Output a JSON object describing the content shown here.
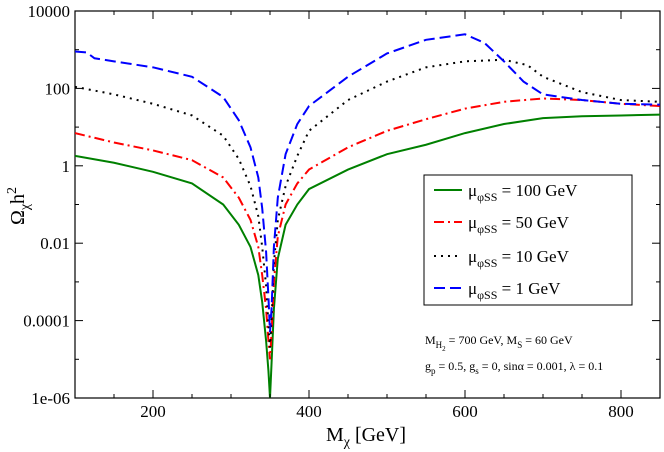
{
  "chart_data": {
    "type": "line",
    "title": "",
    "xlabel": "M",
    "xlabel_sub": "χ",
    "xlabel_unit": "[GeV]",
    "ylabel": "Ω",
    "ylabel_sub": "χ",
    "ylabel_tail": "h",
    "ylabel_sup": "2",
    "xscale": "linear",
    "yscale": "log",
    "xlim": [
      100,
      850
    ],
    "ylim": [
      1e-06,
      10000
    ],
    "xticks": [
      200,
      400,
      600,
      800
    ],
    "xtick_labels": [
      "200",
      "400",
      "600",
      "800"
    ],
    "yticks": [
      1e-06,
      0.0001,
      0.01,
      1,
      100,
      10000
    ],
    "ytick_labels": [
      "1e-06",
      "0.0001",
      "0.01",
      "1",
      "100",
      "10000"
    ],
    "legend_position": "center-right",
    "series": [
      {
        "name": "μ_φSS = 100 GeV",
        "label_mu": "μ",
        "label_sub": "φSS",
        "label_rest": " = 100 GeV",
        "color": "#008000",
        "dash": "solid",
        "x": [
          100,
          150,
          200,
          250,
          290,
          310,
          325,
          335,
          340,
          345,
          348,
          350,
          352,
          355,
          360,
          370,
          385,
          400,
          450,
          500,
          550,
          600,
          650,
          700,
          750,
          800,
          850
        ],
        "y": [
          1.8,
          1.2,
          0.7,
          0.35,
          0.1,
          0.03,
          0.008,
          0.0015,
          0.0003,
          3e-05,
          5e-06,
          1e-06,
          8e-06,
          0.0002,
          0.004,
          0.03,
          0.1,
          0.25,
          0.8,
          2.0,
          3.5,
          7.0,
          12.0,
          17.0,
          19.0,
          20.0,
          21.0
        ]
      },
      {
        "name": "μ_φSS = 50 GeV",
        "label_mu": "μ",
        "label_sub": "φSS",
        "label_rest": " = 50 GeV",
        "color": "#ff0000",
        "dash": "dashdot",
        "x": [
          100,
          150,
          200,
          250,
          290,
          310,
          325,
          335,
          340,
          345,
          348,
          350,
          352,
          355,
          360,
          370,
          385,
          400,
          450,
          500,
          550,
          600,
          650,
          700,
          750,
          800,
          850
        ],
        "y": [
          7.0,
          4.0,
          2.5,
          1.4,
          0.5,
          0.15,
          0.04,
          0.008,
          0.0015,
          0.0002,
          3e-05,
          1e-05,
          5e-05,
          0.001,
          0.015,
          0.1,
          0.35,
          0.8,
          3.0,
          8.0,
          16.0,
          30.0,
          45.0,
          55.0,
          50.0,
          40.0,
          35.0
        ]
      },
      {
        "name": "μ_φSS = 10 GeV",
        "label_mu": "μ",
        "label_sub": "φSS",
        "label_rest": " = 10 GeV",
        "color": "#000000",
        "dash": "dotted",
        "x": [
          100,
          150,
          200,
          250,
          290,
          310,
          325,
          335,
          340,
          345,
          348,
          350,
          352,
          355,
          360,
          370,
          385,
          400,
          450,
          500,
          550,
          600,
          650,
          680,
          700,
          750,
          800,
          850
        ],
        "y": [
          110,
          70,
          40,
          20,
          6,
          1.5,
          0.3,
          0.05,
          0.008,
          0.0008,
          8e-05,
          2e-05,
          0.0001,
          0.003,
          0.04,
          0.3,
          1.8,
          8,
          50,
          150,
          350,
          500,
          550,
          400,
          200,
          80,
          50,
          45
        ]
      },
      {
        "name": "μ_φSS = 1 GeV",
        "label_mu": "μ",
        "label_sub": "φSS",
        "label_rest": " = 1 GeV",
        "color": "#0000ff",
        "dash": "dashed",
        "x": [
          100,
          115,
          125,
          150,
          200,
          250,
          290,
          310,
          325,
          335,
          340,
          345,
          348,
          350,
          352,
          355,
          360,
          370,
          385,
          400,
          450,
          500,
          550,
          600,
          625,
          650,
          675,
          700,
          750,
          800,
          850
        ],
        "y": [
          900,
          850,
          600,
          500,
          350,
          200,
          60,
          15,
          3,
          0.5,
          0.08,
          0.006,
          0.0004,
          5e-05,
          0.0002,
          0.008,
          0.15,
          2,
          12,
          35,
          200,
          800,
          1800,
          2500,
          1500,
          500,
          150,
          70,
          50,
          40,
          38
        ]
      }
    ],
    "annotation": {
      "line1": {
        "a_base": "M",
        "a_sub": "H",
        "a_subsub": "2",
        "a_rest": " = 700 GeV, M",
        "b_sub": "S",
        "b_rest": " = 60 GeV"
      },
      "line2": {
        "a_base": "g",
        "a_sub": "p",
        "a_rest": " = 0.5, g",
        "b_sub": "s",
        "b_rest": " = 0, sinα = 0.001, λ = 0.1"
      }
    }
  }
}
